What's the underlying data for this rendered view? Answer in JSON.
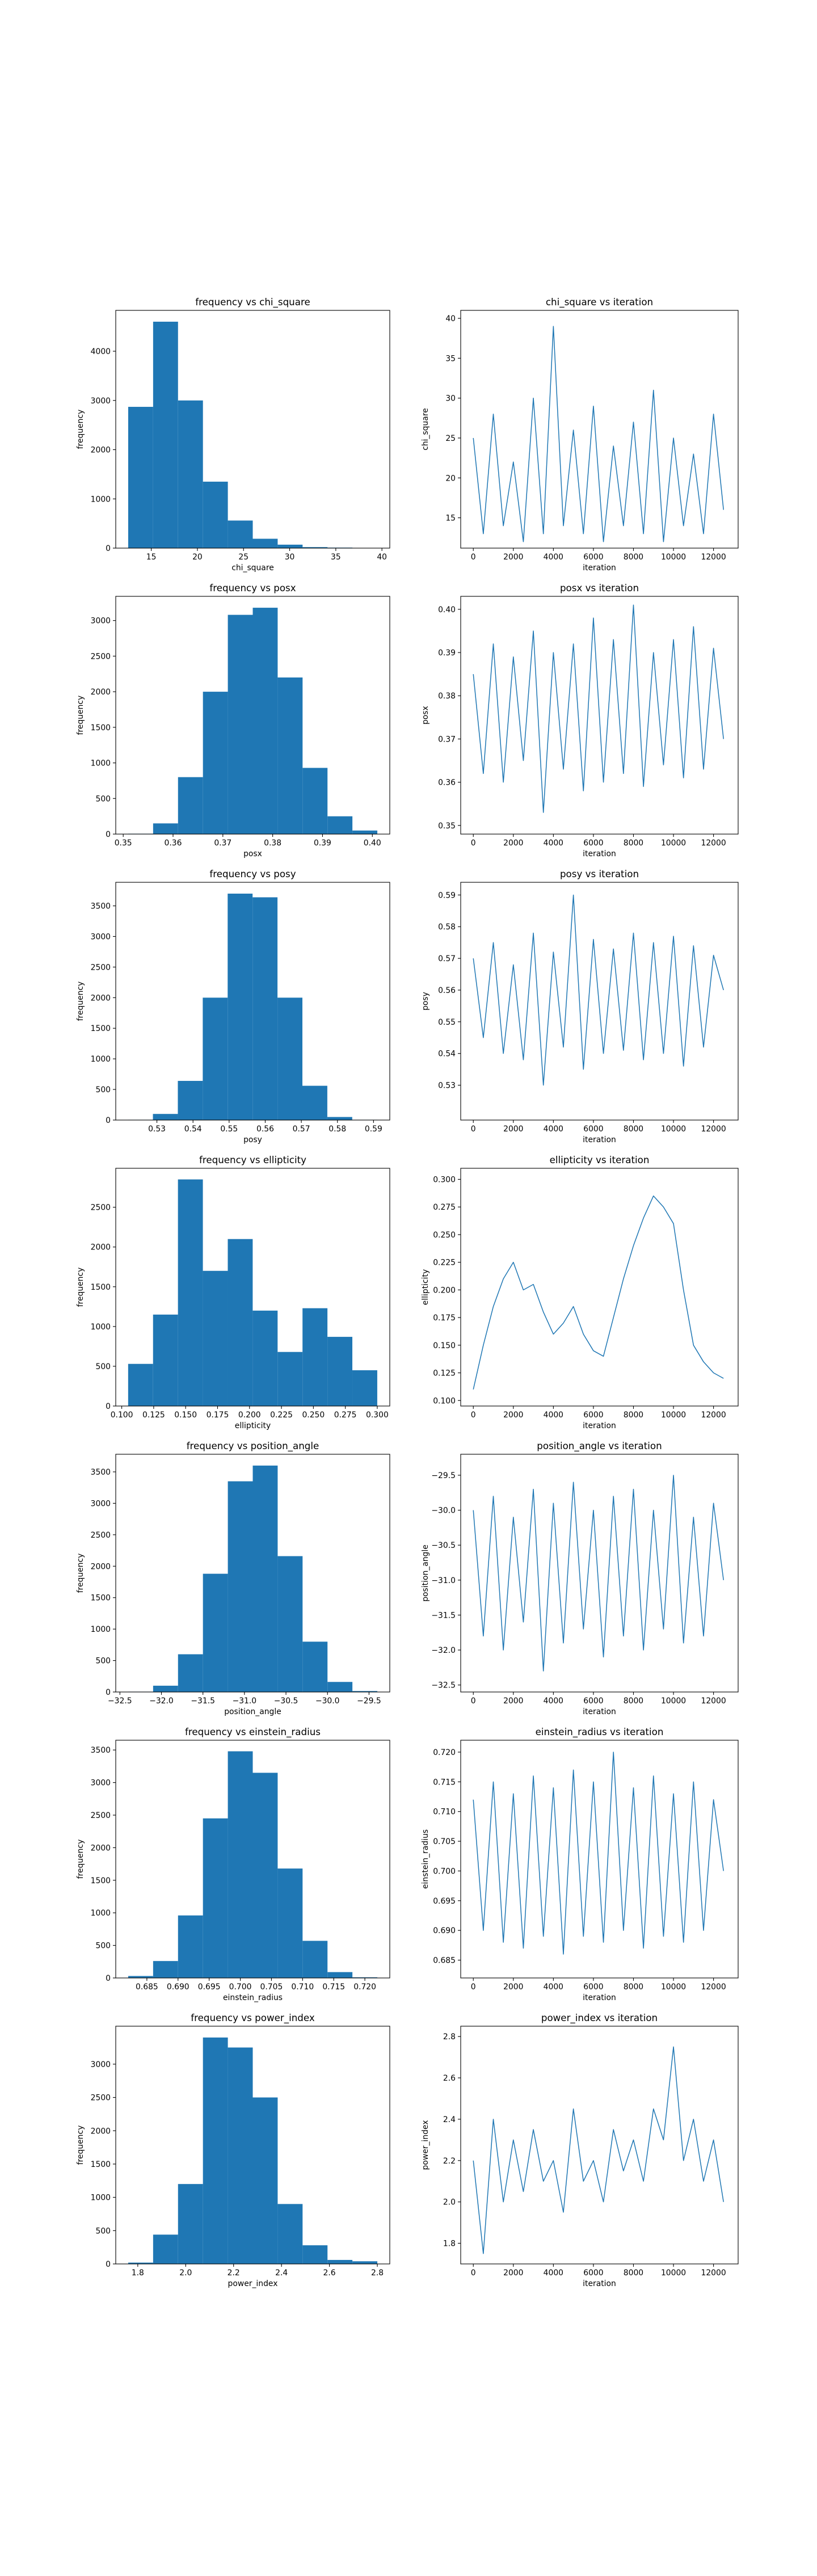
{
  "chart_data": [
    {
      "type": "histogram",
      "title": "frequency vs chi_square",
      "xlabel": "chi_square",
      "ylabel": "frequency",
      "color": "#1f77b4",
      "bins": [
        12.5,
        15.2,
        17.9,
        20.6,
        23.3,
        26.0,
        28.7,
        31.4,
        34.1,
        36.8,
        39.5
      ],
      "values": [
        2870,
        4600,
        3000,
        1350,
        560,
        190,
        70,
        20,
        10,
        5
      ],
      "xlim": [
        11.15,
        40.85
      ],
      "ylim": [
        0,
        4830
      ],
      "xticks": [
        15,
        20,
        25,
        30,
        35,
        40
      ],
      "yticks": [
        0,
        1000,
        2000,
        3000,
        4000
      ]
    },
    {
      "type": "line",
      "title": "chi_square vs iteration",
      "xlabel": "iteration",
      "ylabel": "chi_square",
      "color": "#1f77b4",
      "x": [
        0,
        500,
        1000,
        1500,
        2000,
        2500,
        3000,
        3500,
        4000,
        4500,
        5000,
        5500,
        6000,
        6500,
        7000,
        7500,
        8000,
        8500,
        9000,
        9500,
        10000,
        10500,
        11000,
        11500,
        12000,
        12500
      ],
      "values": [
        25,
        13,
        28,
        14,
        22,
        12,
        30,
        13,
        39,
        14,
        26,
        13,
        29,
        12,
        24,
        14,
        27,
        13,
        31,
        12,
        25,
        14,
        23,
        13,
        28,
        16
      ],
      "xlim": [
        -630,
        13230
      ],
      "ylim": [
        11.2,
        41
      ],
      "xticks": [
        0,
        2000,
        4000,
        6000,
        8000,
        10000,
        12000
      ],
      "yticks": [
        15,
        20,
        25,
        30,
        35,
        40
      ]
    },
    {
      "type": "histogram",
      "title": "frequency vs posx",
      "xlabel": "posx",
      "ylabel": "frequency",
      "color": "#1f77b4",
      "bins": [
        0.351,
        0.356,
        0.361,
        0.366,
        0.371,
        0.376,
        0.381,
        0.386,
        0.391,
        0.396,
        0.401
      ],
      "values": [
        5,
        150,
        800,
        2000,
        3080,
        3180,
        2200,
        930,
        250,
        50
      ],
      "xlim": [
        0.3485,
        0.4035
      ],
      "ylim": [
        0,
        3340
      ],
      "xticks": [
        0.35,
        0.36,
        0.37,
        0.38,
        0.39,
        {
          "value": 0.4,
          "label": "0.40"
        }
      ],
      "yticks": [
        0,
        500,
        1000,
        1500,
        2000,
        2500,
        3000
      ]
    },
    {
      "type": "line",
      "title": "posx vs iteration",
      "xlabel": "iteration",
      "ylabel": "posx",
      "color": "#1f77b4",
      "x": [
        0,
        500,
        1000,
        1500,
        2000,
        2500,
        3000,
        3500,
        4000,
        4500,
        5000,
        5500,
        6000,
        6500,
        7000,
        7500,
        8000,
        8500,
        9000,
        9500,
        10000,
        10500,
        11000,
        11500,
        12000,
        12500
      ],
      "values": [
        0.385,
        0.362,
        0.392,
        0.36,
        0.389,
        0.365,
        0.395,
        0.353,
        0.39,
        0.363,
        0.392,
        0.358,
        0.398,
        0.36,
        0.393,
        0.362,
        0.401,
        0.359,
        0.39,
        0.364,
        0.393,
        0.361,
        0.396,
        0.363,
        0.391,
        0.37
      ],
      "xlim": [
        -630,
        13230
      ],
      "ylim": [
        0.348,
        0.403
      ],
      "xticks": [
        0,
        2000,
        4000,
        6000,
        8000,
        10000,
        12000
      ],
      "yticks": [
        0.35,
        0.36,
        0.37,
        0.38,
        0.39,
        {
          "value": 0.4,
          "label": "0.40"
        }
      ]
    },
    {
      "type": "histogram",
      "title": "frequency vs posy",
      "xlabel": "posy",
      "ylabel": "frequency",
      "color": "#1f77b4",
      "bins": [
        0.522,
        0.5289,
        0.5358,
        0.5427,
        0.5496,
        0.5565,
        0.5634,
        0.5703,
        0.5772,
        0.5841,
        0.591
      ],
      "values": [
        5,
        100,
        640,
        2000,
        3700,
        3640,
        2000,
        560,
        50,
        5
      ],
      "xlim": [
        0.5186,
        0.5945
      ],
      "ylim": [
        0,
        3885
      ],
      "xticks": [
        0.53,
        0.54,
        0.55,
        0.56,
        0.57,
        0.58,
        0.59
      ],
      "yticks": [
        0,
        500,
        1000,
        1500,
        2000,
        2500,
        3000,
        3500
      ]
    },
    {
      "type": "line",
      "title": "posy vs iteration",
      "xlabel": "iteration",
      "ylabel": "posy",
      "color": "#1f77b4",
      "x": [
        0,
        500,
        1000,
        1500,
        2000,
        2500,
        3000,
        3500,
        4000,
        4500,
        5000,
        5500,
        6000,
        6500,
        7000,
        7500,
        8000,
        8500,
        9000,
        9500,
        10000,
        10500,
        11000,
        11500,
        12000,
        12500
      ],
      "values": [
        0.57,
        0.545,
        0.575,
        0.54,
        0.568,
        0.538,
        0.578,
        0.53,
        0.572,
        0.542,
        0.59,
        0.535,
        0.576,
        0.54,
        0.573,
        0.541,
        0.578,
        0.538,
        0.575,
        0.54,
        0.577,
        0.536,
        0.574,
        0.542,
        0.571,
        0.56
      ],
      "xlim": [
        -630,
        13230
      ],
      "ylim": [
        0.519,
        0.594
      ],
      "xticks": [
        0,
        2000,
        4000,
        6000,
        8000,
        10000,
        12000
      ],
      "yticks": [
        0.53,
        0.54,
        0.55,
        0.56,
        0.57,
        0.58,
        0.59
      ]
    },
    {
      "type": "histogram",
      "title": "frequency vs ellipticity",
      "xlabel": "ellipticity",
      "ylabel": "frequency",
      "color": "#1f77b4",
      "bins": [
        0.105,
        0.1245,
        0.144,
        0.1635,
        0.183,
        0.2025,
        0.222,
        0.2415,
        0.261,
        0.2805,
        0.3
      ],
      "values": [
        530,
        1150,
        2850,
        1700,
        2100,
        1200,
        680,
        1230,
        870,
        450
      ],
      "xlim": [
        0.0953,
        0.3098
      ],
      "ylim": [
        0,
        2990
      ],
      "xticks": [
        {
          "value": 0.1,
          "label": "0.100"
        },
        0.125,
        {
          "value": 0.15,
          "label": "0.150"
        },
        0.175,
        {
          "value": 0.2,
          "label": "0.200"
        },
        0.225,
        {
          "value": 0.25,
          "label": "0.250"
        },
        0.275,
        {
          "value": 0.3,
          "label": "0.300"
        }
      ],
      "yticks": [
        0,
        500,
        1000,
        1500,
        2000,
        2500
      ]
    },
    {
      "type": "line",
      "title": "ellipticity vs iteration",
      "xlabel": "iteration",
      "ylabel": "ellipticity",
      "color": "#1f77b4",
      "x": [
        0,
        500,
        1000,
        1500,
        2000,
        2500,
        3000,
        3500,
        4000,
        4500,
        5000,
        5500,
        6000,
        6500,
        7000,
        7500,
        8000,
        8500,
        9000,
        9500,
        10000,
        10500,
        11000,
        11500,
        12000,
        12500
      ],
      "values": [
        0.11,
        0.15,
        0.185,
        0.21,
        0.225,
        0.2,
        0.205,
        0.18,
        0.16,
        0.17,
        0.185,
        0.16,
        0.145,
        0.14,
        0.175,
        0.21,
        0.24,
        0.265,
        0.285,
        0.275,
        0.26,
        0.2,
        0.15,
        0.135,
        0.125,
        0.12
      ],
      "xlim": [
        -630,
        13230
      ],
      "ylim": [
        0.095,
        0.31
      ],
      "xticks": [
        0,
        2000,
        4000,
        6000,
        8000,
        10000,
        12000
      ],
      "yticks": [
        {
          "value": 0.1,
          "label": "0.100"
        },
        0.125,
        {
          "value": 0.15,
          "label": "0.150"
        },
        0.175,
        {
          "value": 0.2,
          "label": "0.200"
        },
        0.225,
        {
          "value": 0.25,
          "label": "0.250"
        },
        0.275,
        {
          "value": 0.3,
          "label": "0.300"
        }
      ]
    },
    {
      "type": "histogram",
      "title": "frequency vs position_angle",
      "xlabel": "position_angle",
      "ylabel": "frequency",
      "color": "#1f77b4",
      "bins": [
        -32.4,
        -32.1,
        -31.8,
        -31.5,
        -31.2,
        -30.9,
        -30.6,
        -30.3,
        -30.0,
        -29.7,
        -29.4
      ],
      "values": [
        5,
        100,
        600,
        1880,
        3350,
        3600,
        2160,
        800,
        160,
        15
      ],
      "xlim": [
        -32.55,
        -29.25
      ],
      "ylim": [
        0,
        3780
      ],
      "xticks": [
        {
          "value": -32.5,
          "label": "−32.5"
        },
        {
          "value": -32,
          "label": "−32.0"
        },
        {
          "value": -31.5,
          "label": "−31.5"
        },
        {
          "value": -31,
          "label": "−31.0"
        },
        {
          "value": -30.5,
          "label": "−30.5"
        },
        {
          "value": -30,
          "label": "−30.0"
        },
        {
          "value": -29.5,
          "label": "−29.5"
        }
      ],
      "yticks": [
        0,
        500,
        1000,
        1500,
        2000,
        2500,
        3000,
        3500
      ]
    },
    {
      "type": "line",
      "title": "position_angle vs iteration",
      "xlabel": "iteration",
      "ylabel": "position_angle",
      "color": "#1f77b4",
      "x": [
        0,
        500,
        1000,
        1500,
        2000,
        2500,
        3000,
        3500,
        4000,
        4500,
        5000,
        5500,
        6000,
        6500,
        7000,
        7500,
        8000,
        8500,
        9000,
        9500,
        10000,
        10500,
        11000,
        11500,
        12000,
        12500
      ],
      "values": [
        -30.0,
        -31.8,
        -29.8,
        -32.0,
        -30.1,
        -31.6,
        -29.7,
        -32.3,
        -29.9,
        -31.9,
        -29.6,
        -31.7,
        -30.0,
        -32.1,
        -29.8,
        -31.8,
        -29.7,
        -32.0,
        -30.0,
        -31.7,
        -29.5,
        -31.9,
        -30.1,
        -31.8,
        -29.9,
        -31.0
      ],
      "xlim": [
        -630,
        13230
      ],
      "ylim": [
        -32.6,
        -29.2
      ],
      "xticks": [
        0,
        2000,
        4000,
        6000,
        8000,
        10000,
        12000
      ],
      "yticks": [
        {
          "value": -32.5,
          "label": "−32.5"
        },
        {
          "value": -32,
          "label": "−32.0"
        },
        {
          "value": -31.5,
          "label": "−31.5"
        },
        {
          "value": -31,
          "label": "−31.0"
        },
        {
          "value": -30.5,
          "label": "−30.5"
        },
        {
          "value": -30,
          "label": "−30.0"
        },
        {
          "value": -29.5,
          "label": "−29.5"
        }
      ]
    },
    {
      "type": "histogram",
      "title": "frequency vs einstein_radius",
      "xlabel": "einstein_radius",
      "ylabel": "frequency",
      "color": "#1f77b4",
      "bins": [
        0.682,
        0.686,
        0.69,
        0.694,
        0.698,
        0.702,
        0.706,
        0.71,
        0.714,
        0.718,
        0.722
      ],
      "values": [
        30,
        260,
        960,
        2450,
        3480,
        3150,
        1680,
        570,
        90,
        10
      ],
      "xlim": [
        0.68,
        0.724
      ],
      "ylim": [
        0,
        3650
      ],
      "xticks": [
        0.685,
        {
          "value": 0.69,
          "label": "0.690"
        },
        0.695,
        {
          "value": 0.7,
          "label": "0.700"
        },
        0.705,
        {
          "value": 0.71,
          "label": "0.710"
        },
        0.715,
        {
          "value": 0.72,
          "label": "0.720"
        }
      ],
      "yticks": [
        0,
        500,
        1000,
        1500,
        2000,
        2500,
        3000,
        3500
      ]
    },
    {
      "type": "line",
      "title": "einstein_radius vs iteration",
      "xlabel": "iteration",
      "ylabel": "einstein_radius",
      "color": "#1f77b4",
      "x": [
        0,
        500,
        1000,
        1500,
        2000,
        2500,
        3000,
        3500,
        4000,
        4500,
        5000,
        5500,
        6000,
        6500,
        7000,
        7500,
        8000,
        8500,
        9000,
        9500,
        10000,
        10500,
        11000,
        11500,
        12000,
        12500
      ],
      "values": [
        0.712,
        0.69,
        0.715,
        0.688,
        0.713,
        0.687,
        0.716,
        0.689,
        0.714,
        0.686,
        0.717,
        0.689,
        0.715,
        0.688,
        0.72,
        0.69,
        0.714,
        0.687,
        0.716,
        0.689,
        0.713,
        0.688,
        0.715,
        0.69,
        0.712,
        0.7
      ],
      "xlim": [
        -630,
        13230
      ],
      "ylim": [
        0.682,
        0.722
      ],
      "xticks": [
        0,
        2000,
        4000,
        6000,
        8000,
        10000,
        12000
      ],
      "yticks": [
        0.685,
        {
          "value": 0.69,
          "label": "0.690"
        },
        0.695,
        {
          "value": 0.7,
          "label": "0.700"
        },
        0.705,
        {
          "value": 0.71,
          "label": "0.710"
        },
        0.715,
        {
          "value": 0.72,
          "label": "0.720"
        }
      ]
    },
    {
      "type": "histogram",
      "title": "frequency vs power_index",
      "xlabel": "power_index",
      "ylabel": "frequency",
      "color": "#1f77b4",
      "bins": [
        1.76,
        1.864,
        1.968,
        2.072,
        2.176,
        2.28,
        2.384,
        2.488,
        2.592,
        2.696,
        2.8
      ],
      "values": [
        20,
        440,
        1200,
        3400,
        3250,
        2500,
        900,
        280,
        60,
        40
      ],
      "xlim": [
        1.708,
        2.852
      ],
      "ylim": [
        0,
        3570
      ],
      "xticks": [
        1.8,
        {
          "value": 2,
          "label": "2.0"
        },
        2.2,
        2.4,
        2.6,
        2.8
      ],
      "yticks": [
        0,
        500,
        1000,
        1500,
        2000,
        2500,
        3000
      ]
    },
    {
      "type": "line",
      "title": "power_index vs iteration",
      "xlabel": "iteration",
      "ylabel": "power_index",
      "color": "#1f77b4",
      "x": [
        0,
        500,
        1000,
        1500,
        2000,
        2500,
        3000,
        3500,
        4000,
        4500,
        5000,
        5500,
        6000,
        6500,
        7000,
        7500,
        8000,
        8500,
        9000,
        9500,
        10000,
        10500,
        11000,
        11500,
        12000,
        12500
      ],
      "values": [
        2.2,
        1.75,
        2.4,
        2.0,
        2.3,
        2.05,
        2.35,
        2.1,
        2.2,
        1.95,
        2.45,
        2.1,
        2.2,
        2.0,
        2.35,
        2.15,
        2.3,
        2.1,
        2.45,
        2.3,
        2.75,
        2.2,
        2.4,
        2.1,
        2.3,
        2.0
      ],
      "xlim": [
        -630,
        13230
      ],
      "ylim": [
        1.7,
        2.85
      ],
      "xticks": [
        0,
        2000,
        4000,
        6000,
        8000,
        10000,
        12000
      ],
      "yticks": [
        1.8,
        {
          "value": 2,
          "label": "2.0"
        },
        2.2,
        2.4,
        2.6,
        2.8
      ]
    }
  ]
}
